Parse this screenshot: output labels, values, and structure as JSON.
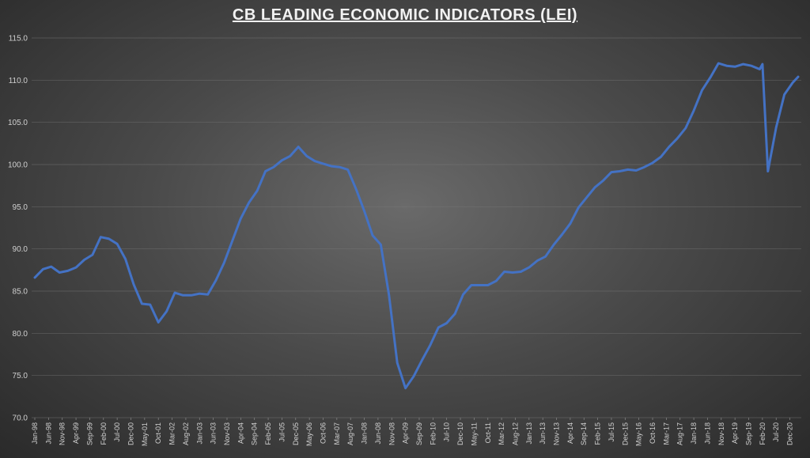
{
  "chart_data": {
    "type": "line",
    "title": "CB LEADING ECONOMIC INDICATORS (LEI)",
    "xlabel": "",
    "ylabel": "",
    "ylim": [
      70,
      115
    ],
    "yticks": [
      "70.0",
      "75.0",
      "80.0",
      "85.0",
      "90.0",
      "95.0",
      "100.0",
      "105.0",
      "110.0",
      "115.0"
    ],
    "grid": true,
    "line_color": "#4472C4",
    "x_tick_labels": [
      "Jan-98",
      "Jun-98",
      "Nov-98",
      "Apr-99",
      "Sep-99",
      "Feb-00",
      "Jul-00",
      "Dec-00",
      "May-01",
      "Oct-01",
      "Mar-02",
      "Aug-02",
      "Jan-03",
      "Jun-03",
      "Nov-03",
      "Apr-04",
      "Sep-04",
      "Feb-05",
      "Jul-05",
      "Dec-05",
      "May-06",
      "Oct-06",
      "Mar-07",
      "Aug-07",
      "Jan-08",
      "Jun-08",
      "Nov-08",
      "Apr-09",
      "Sep-09",
      "Feb-10",
      "Jul-10",
      "Dec-10",
      "May-11",
      "Oct-11",
      "Mar-12",
      "Aug-12",
      "Jan-13",
      "Jun-13",
      "Nov-13",
      "Apr-14",
      "Sep-14",
      "Feb-15",
      "Jul-15",
      "Dec-15",
      "May-16",
      "Oct-16",
      "Mar-17",
      "Aug-17",
      "Jan-18",
      "Jun-18",
      "Nov-18",
      "Apr-19",
      "Sep-19",
      "Feb-20",
      "Jul-20",
      "Dec-20"
    ],
    "series": [
      {
        "x": [
          "Jan-98",
          "Apr-98",
          "Jul-98",
          "Oct-98",
          "Jan-99",
          "Apr-99",
          "Jul-99",
          "Oct-99",
          "Jan-00",
          "Apr-00",
          "Jul-00",
          "Oct-00",
          "Jan-01",
          "Apr-01",
          "Jul-01",
          "Oct-01",
          "Jan-02",
          "Apr-02",
          "Jul-02",
          "Oct-02",
          "Jan-03",
          "Apr-03",
          "Jul-03",
          "Oct-03",
          "Jan-04",
          "Apr-04",
          "Jul-04",
          "Oct-04",
          "Jan-05",
          "Apr-05",
          "Jul-05",
          "Oct-05",
          "Jan-06",
          "Apr-06",
          "Jul-06",
          "Oct-06",
          "Jan-07",
          "Apr-07",
          "Jul-07",
          "Oct-07",
          "Jan-08",
          "Apr-08",
          "Jul-08",
          "Oct-08",
          "Jan-09",
          "Apr-09",
          "Jul-09",
          "Oct-09",
          "Jan-10",
          "Apr-10",
          "Jul-10",
          "Oct-10",
          "Jan-11",
          "Apr-11",
          "Jul-11",
          "Oct-11",
          "Jan-12",
          "Apr-12",
          "Jul-12",
          "Oct-12",
          "Jan-13",
          "Apr-13",
          "Jul-13",
          "Oct-13",
          "Jan-14",
          "Apr-14",
          "Jul-14",
          "Oct-14",
          "Jan-15",
          "Apr-15",
          "Jul-15",
          "Oct-15",
          "Jan-16",
          "Apr-16",
          "Jul-16",
          "Oct-16",
          "Jan-17",
          "Apr-17",
          "Jul-17",
          "Oct-17",
          "Jan-18",
          "Apr-18",
          "Jul-18",
          "Oct-18",
          "Jan-19",
          "Apr-19",
          "Jul-19",
          "Oct-19",
          "Jan-20",
          "Feb-20",
          "Apr-20",
          "Jul-20",
          "Oct-20",
          "Jan-21",
          "Mar-21"
        ],
        "values": [
          86.6,
          87.6,
          87.9,
          87.2,
          87.4,
          87.8,
          88.7,
          89.3,
          91.4,
          91.2,
          90.6,
          88.8,
          85.8,
          83.5,
          83.4,
          81.3,
          82.6,
          84.8,
          84.5,
          84.5,
          84.7,
          84.6,
          86.3,
          88.4,
          91.0,
          93.6,
          95.5,
          96.9,
          99.2,
          99.7,
          100.5,
          101.0,
          102.1,
          101.0,
          100.4,
          100.1,
          99.8,
          99.7,
          99.4,
          97.1,
          94.5,
          91.6,
          90.5,
          84.5,
          76.5,
          73.5,
          74.9,
          76.8,
          78.6,
          80.7,
          81.2,
          82.3,
          84.6,
          85.7,
          85.7,
          85.7,
          86.2,
          87.3,
          87.2,
          87.3,
          87.8,
          88.6,
          89.1,
          90.5,
          91.7,
          93.0,
          94.9,
          96.1,
          97.3,
          98.1,
          99.1,
          99.2,
          99.4,
          99.3,
          99.7,
          100.2,
          100.9,
          102.1,
          103.1,
          104.3,
          106.4,
          108.8,
          110.3,
          112.0,
          111.7,
          111.6,
          111.9,
          111.7,
          111.3,
          111.9,
          99.2,
          104.4,
          108.3,
          109.7,
          110.4
        ]
      }
    ]
  }
}
